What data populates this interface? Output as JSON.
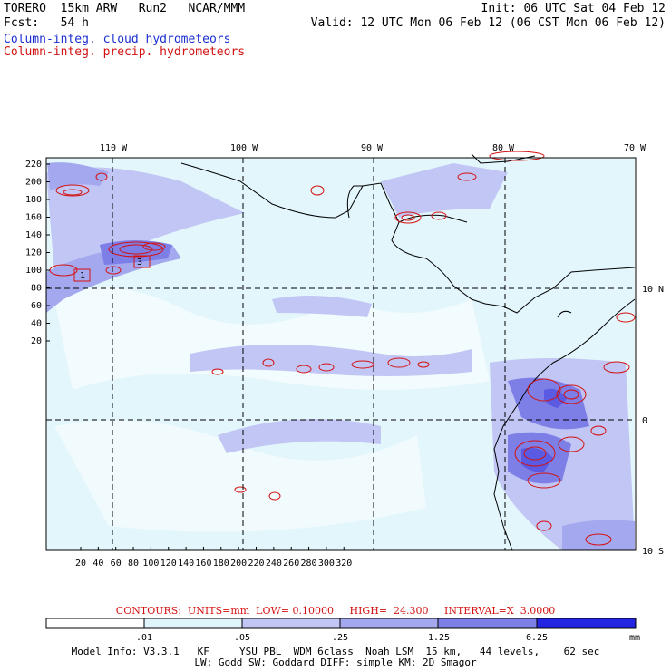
{
  "header": {
    "model": "TORERO  15km ARW   Run2   NCAR/MMM",
    "init": "Init: 06 UTC Sat 04 Feb 12",
    "fcst": "Fcst:   54 h",
    "valid": "Valid: 12 UTC Mon 06 Feb 12 (06 CST Mon 06 Feb 12)",
    "field_cloud": "Column-integ. cloud hydrometeors",
    "field_precip": "Column-integ. precip. hydrometeors"
  },
  "colors": {
    "cloud_text": "#1b2fd1",
    "precip": "#d31212",
    "coast": "#000000",
    "shade_1": "#e0f5fb",
    "shade_2": "#c2c6f4",
    "shade_3": "#a4a8ef",
    "shade_4": "#7d7fe7",
    "shade_5": "#5a5ae2",
    "shade_6": "#2424e3"
  },
  "map": {
    "top_labels": [
      "110 W",
      "100 W",
      "90 W",
      "80 W",
      "70 W"
    ],
    "right_labels": [
      "10 N",
      "0",
      "10 S"
    ],
    "y_ticks": [
      "220",
      "200",
      "180",
      "160",
      "140",
      "120",
      "100",
      "80",
      "60",
      "40",
      "20"
    ],
    "x_ticks": [
      "20",
      "40",
      "60",
      "80",
      "100",
      "120",
      "140",
      "160",
      "180",
      "200",
      "220",
      "240",
      "260",
      "280",
      "300",
      "320"
    ],
    "box_labels": [
      "1",
      "3"
    ]
  },
  "contours": {
    "text": "CONTOURS:  UNITS=mm  LOW= 0.10000     HIGH=  24.300     INTERVAL=X  3.0000"
  },
  "colorbar": {
    "labels": [
      ".01",
      ".05",
      ".25",
      "1.25",
      "6.25"
    ],
    "unit": "mm"
  },
  "footer": {
    "line1": "Model Info: V3.3.1   KF     YSU PBL  WDM 6class  Noah LSM  15 km,   44 levels,    62 sec",
    "line2": "LW: Godd SW: Goddard DIFF: simple KM: 2D Smagor"
  }
}
